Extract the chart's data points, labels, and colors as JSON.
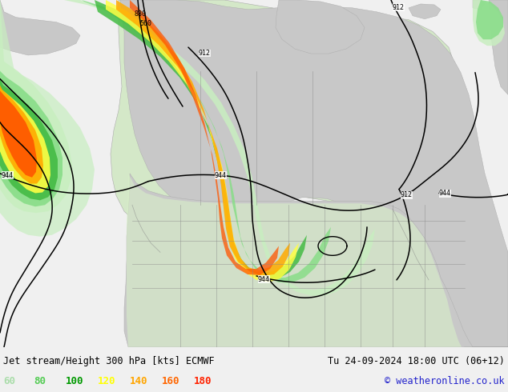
{
  "title_left": "Jet stream/Height 300 hPa [kts] ECMWF",
  "title_right": "Tu 24-09-2024 18:00 UTC (06+12)",
  "copyright": "© weatheronline.co.uk",
  "legend_values": [
    "60",
    "80",
    "100",
    "120",
    "140",
    "160",
    "180"
  ],
  "legend_colors": [
    "#aaddaa",
    "#55cc55",
    "#009900",
    "#ffff00",
    "#ffa500",
    "#ff6600",
    "#ff2200"
  ],
  "bg_color": "#f0f0f0",
  "land_color": "#c8c8c8",
  "sea_color": "#f0f0f0",
  "light_green_bg": "#c8e8c0",
  "figsize": [
    6.34,
    4.9
  ],
  "dpi": 100,
  "jet_colors": {
    "60kt": "#c8eec0",
    "80kt": "#88dd88",
    "100kt": "#44bb44",
    "120kt": "#ffff44",
    "140kt": "#ffaa00",
    "160kt": "#ff5500",
    "180kt": "#dd0000"
  }
}
